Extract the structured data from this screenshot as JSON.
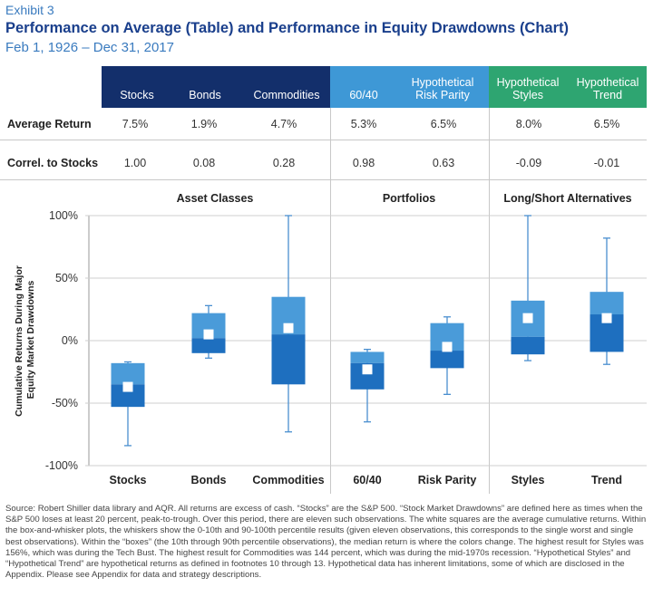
{
  "header": {
    "exhibit": "Exhibit 3",
    "title": "Performance on Average (Table) and Performance in Equity Drawdowns (Chart)",
    "subtitle": "Feb 1, 1926 – Dec 31, 2017"
  },
  "colors": {
    "asset_header": "#132f6b",
    "portfolio_header": "#3e98d6",
    "alternatives_header": "#2ea571",
    "box_light": "#4a9bd9",
    "box_dark": "#1e6fbf",
    "whisker": "#4a8fd0"
  },
  "table": {
    "columns": [
      "Stocks",
      "Bonds",
      "Commodities",
      "60/40",
      "Hypothetical Risk Parity",
      "Hypothetical Styles",
      "Hypothetical Trend"
    ],
    "column_lines": [
      [
        "Stocks"
      ],
      [
        "Bonds"
      ],
      [
        "Commodities"
      ],
      [
        "60/40"
      ],
      [
        "Hypothetical",
        "Risk Parity"
      ],
      [
        "Hypothetical",
        "Styles"
      ],
      [
        "Hypothetical",
        "Trend"
      ]
    ],
    "rows": [
      {
        "label": "Average Return",
        "values": [
          "7.5%",
          "1.9%",
          "4.7%",
          "5.3%",
          "6.5%",
          "8.0%",
          "6.5%"
        ]
      },
      {
        "label": "Correl. to Stocks",
        "values": [
          "1.00",
          "0.08",
          "0.28",
          "0.98",
          "0.63",
          "-0.09",
          "-0.01"
        ]
      }
    ]
  },
  "chart_data": {
    "type": "box",
    "groups": [
      "Asset Classes",
      "Portfolios",
      "Long/Short Alternatives"
    ],
    "ylabel": "Cumulative Returns During Major Equity Market Drawdowns",
    "ylim": [
      -100,
      100
    ],
    "yticks": [
      100,
      50,
      0,
      -50,
      -100
    ],
    "ytick_labels": [
      "100%",
      "50%",
      "0%",
      "-50%",
      "-100%"
    ],
    "categories": [
      "Stocks",
      "Bonds",
      "Commodities",
      "60/40",
      "Risk Parity",
      "Styles",
      "Trend"
    ],
    "series": [
      {
        "category": "Stocks",
        "group": "Asset Classes",
        "whisker_low": -84,
        "box_low": -53,
        "median": -35,
        "box_high": -18,
        "whisker_high": -17,
        "mean": -37
      },
      {
        "category": "Bonds",
        "group": "Asset Classes",
        "whisker_low": -14,
        "box_low": -10,
        "median": 2,
        "box_high": 22,
        "whisker_high": 28,
        "mean": 5
      },
      {
        "category": "Commodities",
        "group": "Asset Classes",
        "whisker_low": -73,
        "box_low": -35,
        "median": 5,
        "box_high": 35,
        "whisker_high": 100,
        "mean": 10
      },
      {
        "category": "60/40",
        "group": "Portfolios",
        "whisker_low": -65,
        "box_low": -39,
        "median": -18,
        "box_high": -9,
        "whisker_high": -7,
        "mean": -23
      },
      {
        "category": "Risk Parity",
        "group": "Portfolios",
        "whisker_low": -43,
        "box_low": -22,
        "median": -8,
        "box_high": 14,
        "whisker_high": 19,
        "mean": -5
      },
      {
        "category": "Styles",
        "group": "Long/Short Alternatives",
        "whisker_low": -16,
        "box_low": -11,
        "median": 3,
        "box_high": 32,
        "whisker_high": 100,
        "mean": 18
      },
      {
        "category": "Trend",
        "group": "Long/Short Alternatives",
        "whisker_low": -19,
        "box_low": -9,
        "median": 21,
        "box_high": 39,
        "whisker_high": 82,
        "mean": 18
      }
    ]
  },
  "source": "Source: Robert Shiller data library and AQR. All returns are excess of cash. “Stocks” are the S&P 500. “Stock Market Drawdowns” are defined here as times when the S&P 500 loses at least 20 percent, peak-to-trough. Over this period, there are eleven such observations. The white squares are the average cumulative returns. Within the box-and-whisker plots, the whiskers show the 0-10th and 90-100th percentile results (given eleven observations, this corresponds to the single worst and single best observations). Within the “boxes” (the 10th through 90th percentile observations), the median return is where the colors change. The highest result for Styles was 156%, which was during the Tech Bust. The highest result for Commodities was 144 percent, which was during the mid-1970s recession. “Hypothetical Styles” and “Hypothetical Trend” are hypothetical returns as defined in footnotes 10 through 13. Hypothetical data has inherent limitations, some of which are disclosed in the Appendix. Please see Appendix for data and strategy descriptions."
}
